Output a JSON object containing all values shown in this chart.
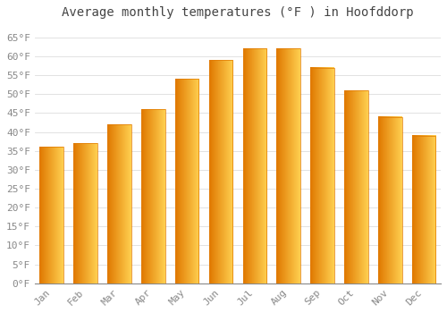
{
  "title": "Average monthly temperatures (°F ) in Hoofddorp",
  "months": [
    "Jan",
    "Feb",
    "Mar",
    "Apr",
    "May",
    "Jun",
    "Jul",
    "Aug",
    "Sep",
    "Oct",
    "Nov",
    "Dec"
  ],
  "values": [
    36,
    37,
    42,
    46,
    54,
    59,
    62,
    62,
    57,
    51,
    44,
    39
  ],
  "bar_color_main": "#FFA500",
  "bar_color_light": "#FFD050",
  "bar_color_dark": "#E07800",
  "bar_width": 0.7,
  "ylim": [
    0,
    68
  ],
  "yticks": [
    0,
    5,
    10,
    15,
    20,
    25,
    30,
    35,
    40,
    45,
    50,
    55,
    60,
    65
  ],
  "ylabel_suffix": "°F",
  "grid_color": "#dddddd",
  "background_color": "#ffffff",
  "title_fontsize": 10,
  "tick_fontsize": 8,
  "font_family": "monospace"
}
